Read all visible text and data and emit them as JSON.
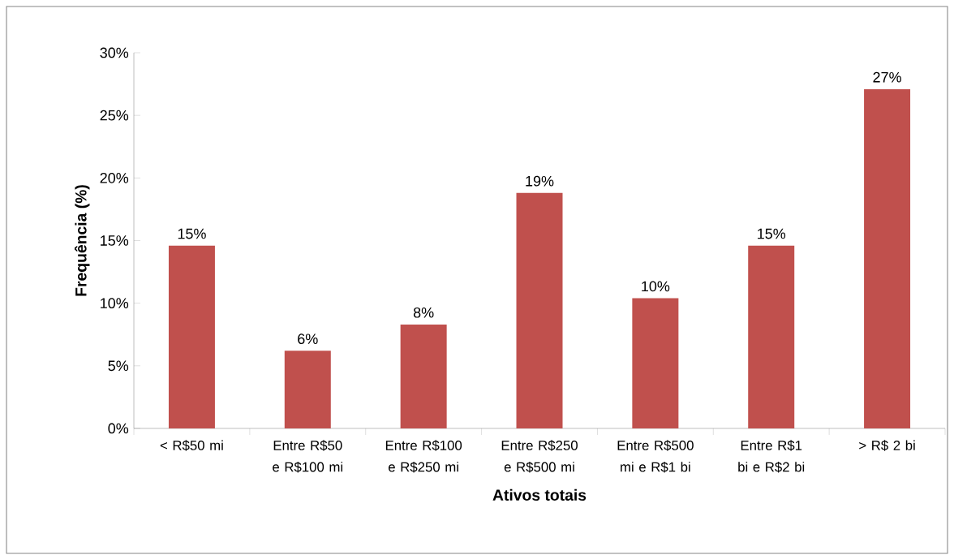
{
  "chart_data": {
    "type": "bar",
    "xlabel": "Ativos totais",
    "ylabel": "Frequência (%)",
    "categories": [
      "< R$50 mi",
      "Entre R$50 e R$100 mi",
      "Entre R$100 e R$250 mi",
      "Entre R$250 e R$500 mi",
      "Entre R$500 mi e R$1 bi",
      "Entre R$1 bi e R$2 bi",
      "> R$ 2 bi"
    ],
    "values": [
      14.6,
      6.2,
      8.3,
      18.8,
      10.4,
      14.6,
      27.1
    ],
    "value_labels": [
      "15%",
      "6%",
      "8%",
      "19%",
      "10%",
      "15%",
      "27%"
    ],
    "color": "#c0504d",
    "ylim": [
      0,
      30
    ],
    "yticks": [
      {
        "value": 0,
        "label": "0%"
      },
      {
        "value": 5,
        "label": "5%"
      },
      {
        "value": 10,
        "label": "10%"
      },
      {
        "value": 15,
        "label": "15%"
      },
      {
        "value": 20,
        "label": "20%"
      },
      {
        "value": 25,
        "label": "25%"
      },
      {
        "value": 30,
        "label": "30%"
      }
    ]
  }
}
